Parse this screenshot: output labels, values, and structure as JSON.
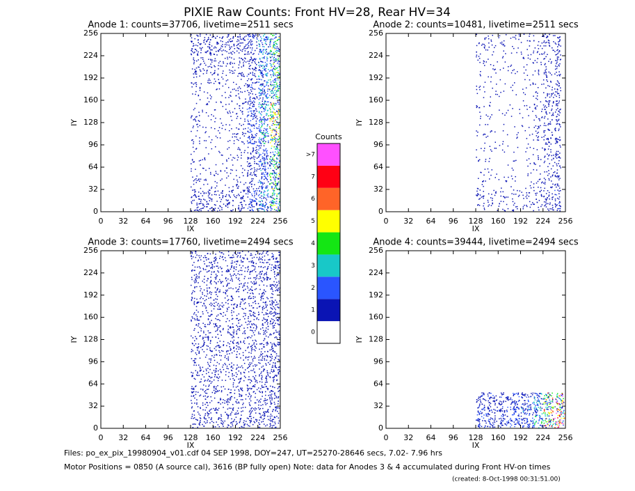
{
  "title": "PIXIE Raw Counts:  Front HV=28, Rear HV=34",
  "chart_data": [
    {
      "type": "heatmap",
      "title": "Anode 1: counts=37706, livetime=2511 secs",
      "xlabel": "IX",
      "ylabel": "IY",
      "xlim": [
        0,
        256
      ],
      "ylim": [
        0,
        256
      ],
      "xticks": [
        0,
        32,
        64,
        96,
        128,
        160,
        192,
        224,
        256
      ],
      "yticks": [
        0,
        32,
        64,
        96,
        128,
        160,
        192,
        224,
        256
      ],
      "xbins": [
        128,
        144,
        160,
        176,
        192,
        208,
        224,
        240,
        256
      ],
      "ybins": [
        0,
        32,
        64,
        96,
        128,
        160,
        192,
        224,
        256
      ],
      "values": [
        [
          0.9,
          0.8,
          0.6,
          0.6,
          0.7,
          1.5,
          2.5,
          4
        ],
        [
          0.3,
          0.2,
          0.2,
          0.2,
          0.3,
          0.8,
          2,
          4
        ],
        [
          0.2,
          0.1,
          0.1,
          0.15,
          0.2,
          0.9,
          2,
          4
        ],
        [
          0.25,
          0.15,
          0.15,
          0.2,
          0.4,
          1.5,
          3,
          5
        ],
        [
          0.25,
          0.15,
          0.15,
          0.2,
          0.4,
          1.5,
          3,
          5
        ],
        [
          0.3,
          0.2,
          0.2,
          0.2,
          0.3,
          1,
          2.5,
          4
        ],
        [
          0.5,
          0.4,
          0.4,
          0.4,
          0.5,
          1,
          2.5,
          4
        ],
        [
          0.9,
          0.8,
          0.7,
          0.7,
          0.8,
          1.2,
          2.5,
          4
        ]
      ]
    },
    {
      "type": "heatmap",
      "title": "Anode 2: counts=10481, livetime=2511 secs",
      "xlabel": "IX",
      "ylabel": "IY",
      "xlim": [
        0,
        256
      ],
      "ylim": [
        0,
        256
      ],
      "xticks": [
        0,
        32,
        64,
        96,
        128,
        160,
        192,
        224,
        256
      ],
      "yticks": [
        0,
        32,
        64,
        96,
        128,
        160,
        192,
        224,
        256
      ],
      "xbins": [
        128,
        144,
        160,
        176,
        192,
        208,
        224,
        240,
        250
      ],
      "ybins": [
        0,
        32,
        64,
        96,
        128,
        160,
        192,
        224,
        256
      ],
      "values": [
        [
          0.4,
          0.3,
          0.3,
          0.3,
          0.3,
          0.4,
          0.7,
          1
        ],
        [
          0.2,
          0.1,
          0.1,
          0.1,
          0.1,
          0.2,
          0.4,
          0.8
        ],
        [
          0.15,
          0.1,
          0.08,
          0.08,
          0.1,
          0.2,
          0.4,
          0.8
        ],
        [
          0.15,
          0.1,
          0.08,
          0.08,
          0.1,
          0.3,
          0.7,
          0.9
        ],
        [
          0.15,
          0.1,
          0.08,
          0.08,
          0.1,
          0.3,
          0.7,
          0.9
        ],
        [
          0.15,
          0.1,
          0.08,
          0.08,
          0.1,
          0.2,
          0.4,
          0.8
        ],
        [
          0.2,
          0.15,
          0.1,
          0.1,
          0.15,
          0.2,
          0.4,
          0.8
        ],
        [
          0.3,
          0.2,
          0.2,
          0.2,
          0.2,
          0.3,
          0.5,
          0.9
        ]
      ]
    },
    {
      "type": "heatmap",
      "title": "Anode 3: counts=17760, livetime=2494 secs",
      "xlabel": "IX",
      "ylabel": "IY",
      "xlim": [
        0,
        256
      ],
      "ylim": [
        0,
        256
      ],
      "xticks": [
        0,
        32,
        64,
        96,
        128,
        160,
        192,
        224,
        256
      ],
      "yticks": [
        0,
        32,
        64,
        96,
        128,
        160,
        192,
        224,
        256
      ],
      "xbins": [
        128,
        144,
        160,
        176,
        192,
        208,
        224,
        240,
        256
      ],
      "ybins": [
        0,
        32,
        64,
        96,
        128,
        160,
        192,
        224,
        256
      ],
      "values": [
        [
          0.6,
          0.6,
          0.6,
          0.6,
          0.6,
          0.7,
          0.8,
          1
        ],
        [
          0.5,
          0.5,
          0.5,
          0.5,
          0.5,
          0.6,
          0.7,
          0.9
        ],
        [
          0.5,
          0.5,
          0.5,
          0.5,
          0.5,
          0.6,
          0.7,
          0.9
        ],
        [
          0.5,
          0.5,
          0.5,
          0.5,
          0.5,
          0.6,
          0.7,
          0.9
        ],
        [
          0.5,
          0.5,
          0.5,
          0.5,
          0.5,
          0.6,
          0.7,
          0.9
        ],
        [
          0.5,
          0.5,
          0.5,
          0.5,
          0.5,
          0.6,
          0.7,
          0.9
        ],
        [
          0.5,
          0.5,
          0.5,
          0.5,
          0.5,
          0.6,
          0.7,
          0.9
        ],
        [
          0.6,
          0.6,
          0.6,
          0.6,
          0.6,
          0.7,
          0.8,
          1
        ]
      ]
    },
    {
      "type": "heatmap",
      "title": "Anode 4: counts=39444, livetime=2494 secs",
      "xlabel": "IX",
      "ylabel": "IY",
      "xlim": [
        0,
        256
      ],
      "ylim": [
        0,
        256
      ],
      "xticks": [
        0,
        32,
        64,
        96,
        128,
        160,
        192,
        224,
        256
      ],
      "yticks": [
        0,
        32,
        64,
        96,
        128,
        160,
        192,
        224,
        256
      ],
      "xbins": [
        128,
        144,
        160,
        176,
        192,
        208,
        224,
        240,
        256
      ],
      "ybins": [
        0,
        16,
        32,
        52
      ],
      "values": [
        [
          1.5,
          1.5,
          1.5,
          1.8,
          2,
          3,
          6,
          9
        ],
        [
          1.2,
          1.2,
          1.3,
          1.5,
          2,
          3,
          6,
          9
        ],
        [
          1,
          1,
          1,
          1.2,
          1.5,
          2.5,
          5,
          8
        ]
      ]
    }
  ],
  "colorbar": {
    "title": "Counts",
    "levels": [
      "0",
      "1",
      "2",
      "3",
      "4",
      "5",
      "6",
      "7",
      ">7"
    ],
    "colors": [
      "#ffffff",
      "#0a14b4",
      "#2a55ff",
      "#18c8c8",
      "#14e614",
      "#ffff00",
      "#ff6428",
      "#ff0014",
      "#ff50ff"
    ]
  },
  "footer": {
    "files": "Files: po_ex_pix_19980904_v01.cdf    04 SEP 1998, DOY=247, UT=25270-28646 secs,  7.02- 7.96 hrs",
    "motor": "Motor Positions = 0850 (A source cal), 3616 (BP fully open)    Note: data for Anodes 3 & 4 accumulated during Front HV-on times",
    "created": "(created:  8-Oct-1998 00:31:51.00)"
  }
}
